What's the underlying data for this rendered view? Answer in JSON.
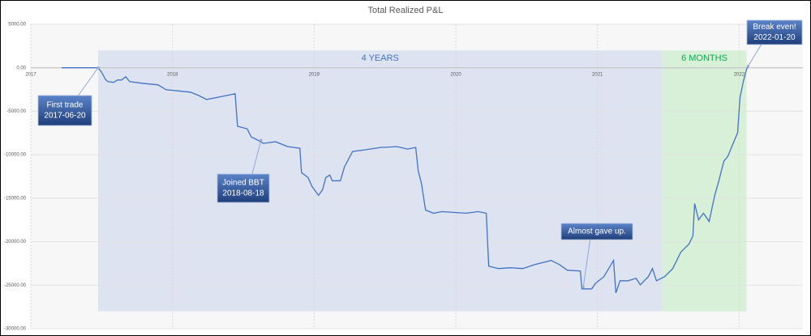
{
  "chart_data": {
    "type": "line",
    "title": "Total Realized P&L",
    "color": "#4472c4",
    "x": [
      2017.217,
      2017.475,
      2017.498,
      2017.526,
      2017.543,
      2017.584,
      2017.612,
      2017.641,
      2017.67,
      2017.698,
      2017.784,
      2017.898,
      2017.955,
      2018.07,
      2018.127,
      2018.184,
      2018.241,
      2018.356,
      2018.442,
      2018.459,
      2018.527,
      2018.556,
      2018.602,
      2018.642,
      2018.728,
      2018.814,
      2018.899,
      2018.911,
      2018.957,
      2018.985,
      2019.031,
      2019.059,
      2019.082,
      2019.111,
      2019.128,
      2019.185,
      2019.214,
      2019.271,
      2019.357,
      2019.471,
      2019.586,
      2019.66,
      2019.717,
      2019.735,
      2019.757,
      2019.786,
      2019.843,
      2019.9,
      2019.986,
      2020.072,
      2020.158,
      2020.215,
      2020.232,
      2020.301,
      2020.387,
      2020.473,
      2020.558,
      2020.673,
      2020.73,
      2020.787,
      2020.879,
      2020.89,
      2020.959,
      2020.987,
      2021.045,
      2021.113,
      2021.13,
      2021.159,
      2021.216,
      2021.273,
      2021.302,
      2021.359,
      2021.388,
      2021.416,
      2021.474,
      2021.531,
      2021.588,
      2021.645,
      2021.674,
      2021.686,
      2021.714,
      2021.748,
      2021.788,
      2021.828,
      2021.857,
      2021.892,
      2021.92,
      2021.96,
      2021.989,
      2022.006,
      2022.029,
      2022.052,
      2022.063
    ],
    "values": [
      0,
      0,
      -467,
      -1308,
      -1589,
      -1682,
      -1402,
      -1402,
      -1028,
      -1589,
      -1776,
      -1963,
      -2523,
      -2710,
      -2804,
      -3178,
      -3645,
      -3271,
      -2991,
      -6729,
      -7009,
      -7944,
      -8318,
      -8692,
      -8505,
      -9065,
      -9252,
      -12056,
      -12617,
      -13645,
      -14673,
      -14019,
      -12617,
      -12336,
      -12991,
      -12991,
      -11402,
      -9626,
      -9439,
      -9159,
      -9065,
      -9346,
      -9159,
      -11869,
      -13271,
      -16355,
      -16729,
      -16542,
      -16636,
      -16729,
      -16542,
      -16729,
      -22804,
      -23084,
      -22991,
      -23084,
      -22617,
      -22150,
      -22617,
      -23271,
      -23364,
      -25421,
      -25421,
      -24766,
      -24019,
      -22150,
      -25888,
      -24486,
      -24486,
      -24206,
      -24953,
      -24019,
      -23084,
      -24486,
      -24019,
      -23084,
      -21215,
      -20280,
      -19346,
      -15607,
      -17477,
      -16729,
      -17664,
      -14673,
      -12991,
      -10748,
      -10187,
      -8598,
      -7477,
      -3458,
      -1589,
      -187,
      187
    ],
    "xlim": [
      2017,
      2022.45
    ],
    "xticks": [
      2017,
      2018,
      2019,
      2020,
      2021,
      2022
    ],
    "ylim": [
      -30000,
      5000
    ],
    "yticks": [
      {
        "value": -30000,
        "label": "-30000.00"
      },
      {
        "value": -25000,
        "label": "-25000.00"
      },
      {
        "value": -20000,
        "label": "-20000.00"
      },
      {
        "value": -15000,
        "label": "-15000.00"
      },
      {
        "value": -10000,
        "label": "-10000.00"
      },
      {
        "value": -5000,
        "label": "-5000.00"
      },
      {
        "value": 0,
        "label": "0.00"
      },
      {
        "value": 5000,
        "label": "5000.00"
      }
    ],
    "grid": true,
    "bands": [
      {
        "label": "4 YEARS",
        "x": [
          2017.475,
          2021.457
        ],
        "y": [
          2000,
          -28000
        ],
        "color": "#dde3f0",
        "label_color": "#4472c4"
      },
      {
        "label": "6 MONTHS",
        "x": [
          2021.457,
          2022.052
        ],
        "y": [
          2000,
          -28000
        ],
        "color": "#d7f0d7",
        "label_color": "#00b050"
      }
    ],
    "annotations": [
      {
        "lines": [
          "First trade",
          "2017-06-20"
        ],
        "x": 2017.475,
        "y": 0
      },
      {
        "lines": [
          "Joined BBT",
          "2018-08-18"
        ],
        "x": 2018.625,
        "y": -8318
      },
      {
        "lines": [
          "Almost gave up."
        ],
        "x": 2020.9,
        "y": -25200
      },
      {
        "lines": [
          "Break even!",
          "2022-01-20"
        ],
        "x": 2022.063,
        "y": 187
      }
    ]
  }
}
